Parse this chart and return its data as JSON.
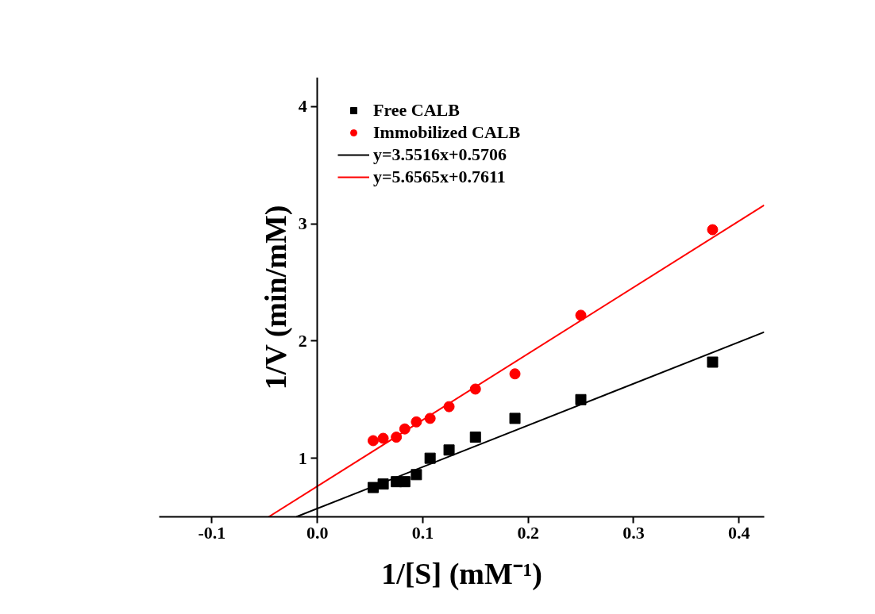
{
  "chart_data": {
    "type": "scatter",
    "xlabel": "1/[S] (mM⁻¹)",
    "ylabel": "1/V (min/mM)",
    "xlim": [
      -0.15,
      0.424
    ],
    "ylim": [
      0.5,
      4.25
    ],
    "xticks": [
      {
        "value": -0.1,
        "label": "-0.1"
      },
      {
        "value": 0,
        "label": "0.0"
      },
      {
        "value": 0.1,
        "label": "0.1"
      },
      {
        "value": 0.2,
        "label": "0.2"
      },
      {
        "value": 0.3,
        "label": "0.3"
      },
      {
        "value": 0.4,
        "label": "0.4"
      }
    ],
    "yticks": [
      1,
      2,
      3,
      4
    ],
    "grid": false,
    "legend": "top left",
    "series": [
      {
        "name": "Free CALB",
        "marker": "square",
        "color": "#000000",
        "x": [
          0.053,
          0.0625,
          0.075,
          0.083,
          0.094,
          0.107,
          0.125,
          0.15,
          0.1875,
          0.25,
          0.375
        ],
        "values": [
          0.75,
          0.78,
          0.8,
          0.8,
          0.86,
          1.0,
          1.07,
          1.18,
          1.34,
          1.5,
          1.82
        ]
      },
      {
        "name": "Immobilized CALB",
        "marker": "circle",
        "color": "#ff0000",
        "x": [
          0.053,
          0.0625,
          0.075,
          0.083,
          0.094,
          0.107,
          0.125,
          0.15,
          0.1875,
          0.25,
          0.375
        ],
        "values": [
          1.15,
          1.17,
          1.18,
          1.25,
          1.31,
          1.34,
          1.44,
          1.59,
          1.72,
          2.22,
          2.95
        ]
      },
      {
        "name": "y=3.5516x+0.5706",
        "type": "line",
        "line_style": "solid",
        "color": "#000000",
        "x": [
          -0.0199,
          0.424
        ],
        "values": [
          0.5,
          2.076
        ]
      },
      {
        "name": "y=5.6565x+0.7611",
        "type": "line",
        "line_style": "solid",
        "color": "#ff0000",
        "x": [
          -0.0461,
          0.424
        ],
        "values": [
          0.5,
          3.159
        ]
      }
    ]
  }
}
